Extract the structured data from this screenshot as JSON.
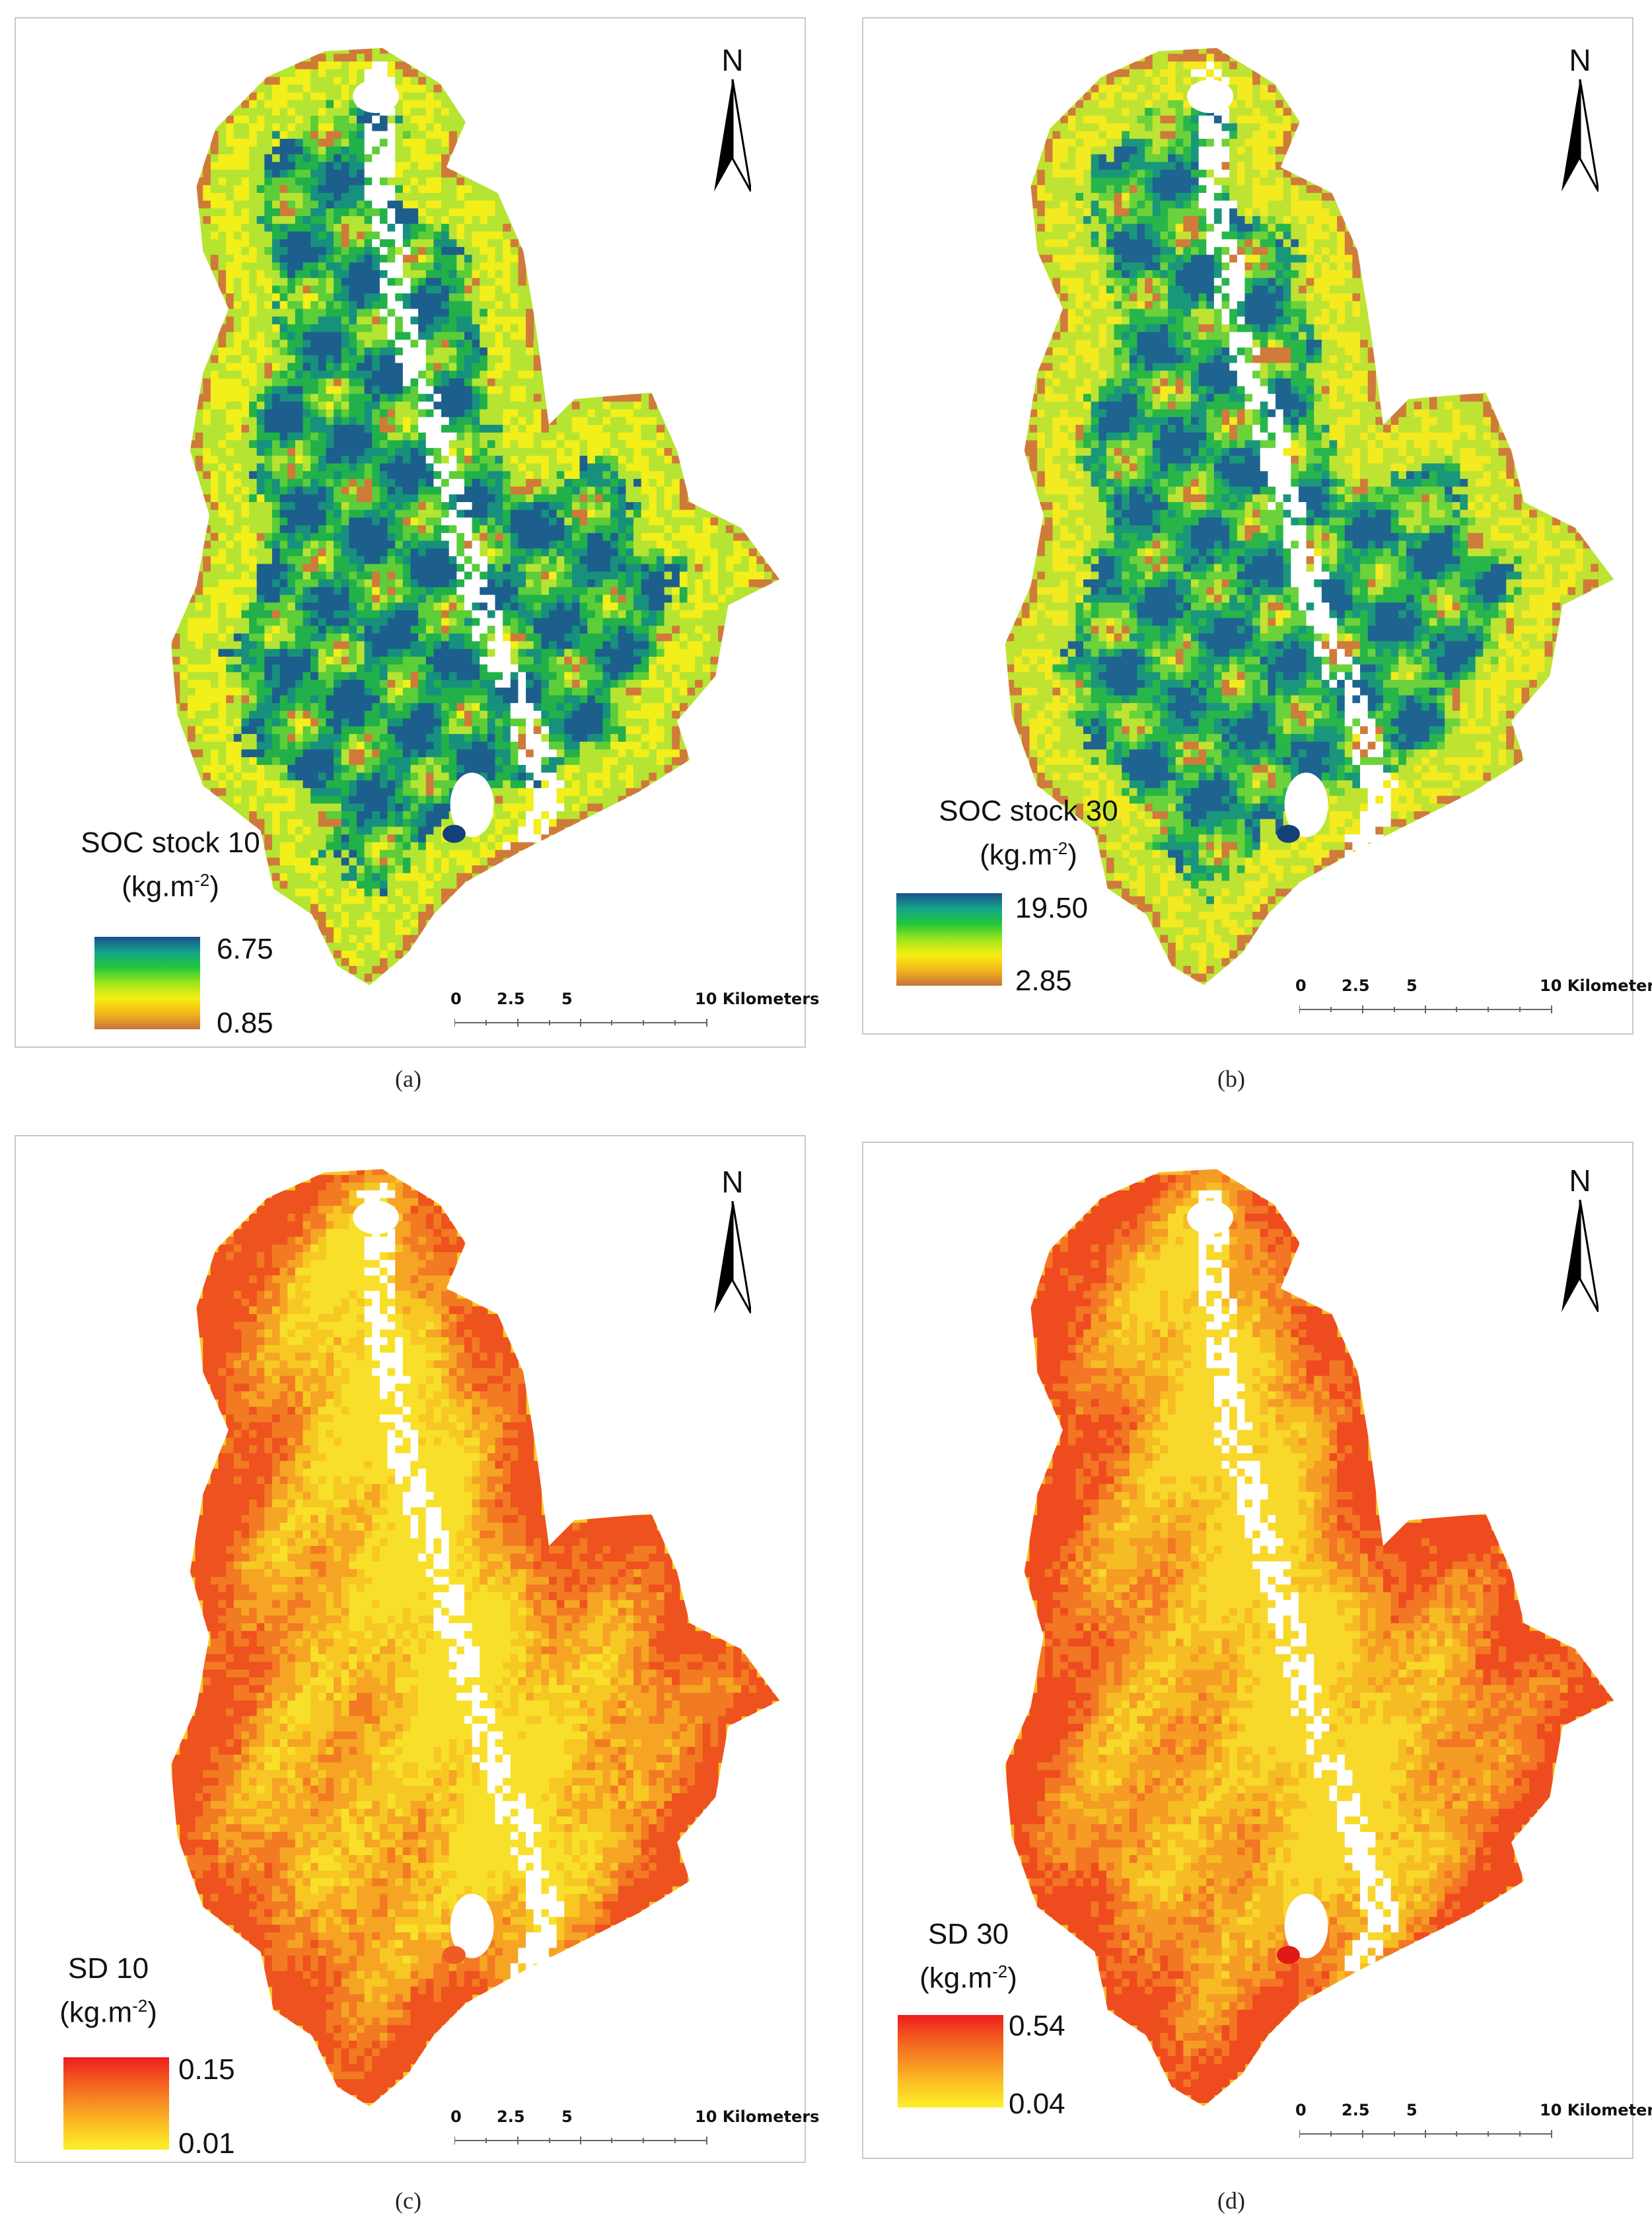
{
  "north_letter": "N",
  "scale": {
    "labels": [
      "0",
      "2.5",
      "5",
      "10 Kilometers"
    ]
  },
  "panels": [
    {
      "id": "a",
      "caption": "(a)",
      "legend": {
        "title_line1": "SOC stock 10",
        "unit_base": "(kg.m",
        "unit_sup": "-2",
        "unit_end": ")",
        "max": "6.75",
        "min": "0.85"
      },
      "ramp_colors": [
        "#1a4f8a",
        "#13a58c",
        "#22c83a",
        "#9fe51d",
        "#f6ee12",
        "#f2b51a",
        "#c6743d"
      ],
      "map_palette": [
        "#f2ef1a",
        "#b6e432",
        "#5dcd39",
        "#22b04a",
        "#17907d",
        "#1c5f8c",
        "#d07a3a"
      ]
    },
    {
      "id": "b",
      "caption": "(b)",
      "legend": {
        "title_line1": "SOC stock 30",
        "unit_base": "(kg.m",
        "unit_sup": "-2",
        "unit_end": ")",
        "max": "19.50",
        "min": "2.85"
      },
      "ramp_colors": [
        "#1a4f8a",
        "#13a58c",
        "#22c83a",
        "#9fe51d",
        "#f6ee12",
        "#f2b51a",
        "#c6743d"
      ],
      "map_palette": [
        "#f3ea20",
        "#bfe332",
        "#6bd23c",
        "#28b54a",
        "#1a977a",
        "#1f6490",
        "#cf7b3b"
      ]
    },
    {
      "id": "c",
      "caption": "(c)",
      "legend": {
        "title_line1": "SD 10",
        "unit_base": "(kg.m",
        "unit_sup": "-2",
        "unit_end": ")",
        "max": "0.15",
        "min": "0.01"
      },
      "ramp_colors": [
        "#ee1c1c",
        "#f25a1f",
        "#f78f22",
        "#fbc424",
        "#fdf02a"
      ],
      "map_palette": [
        "#f8e02a",
        "#f7c823",
        "#f5a424",
        "#f27a22",
        "#ee521e"
      ]
    },
    {
      "id": "d",
      "caption": "(d)",
      "legend": {
        "title_line1": "SD 30",
        "unit_base": "(kg.m",
        "unit_sup": "-2",
        "unit_end": ")",
        "max": "0.54",
        "min": "0.04"
      },
      "ramp_colors": [
        "#ee1c1c",
        "#f25a1f",
        "#f78f22",
        "#fbc424",
        "#fdf02a"
      ],
      "map_palette": [
        "#f8d82a",
        "#f6bc24",
        "#f59c24",
        "#f27624",
        "#ee4c1e"
      ]
    }
  ]
}
